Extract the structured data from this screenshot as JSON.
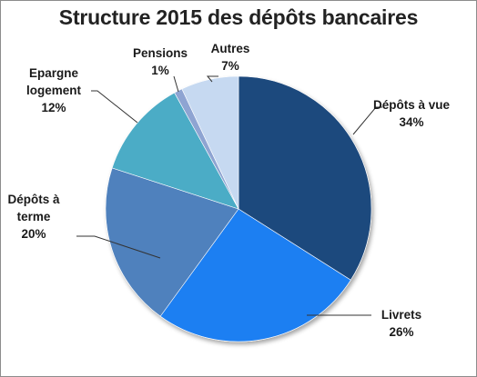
{
  "chart_data": {
    "type": "pie",
    "title": "Structure 2015 des dépôts bancaires",
    "slices": [
      {
        "label": [
          "Dépôts à vue"
        ],
        "value": 34,
        "value_label": "34%",
        "color": "#1f497d"
      },
      {
        "label": [
          "Livrets"
        ],
        "value": 26,
        "value_label": "26%",
        "color": "#1f7ff2"
      },
      {
        "label": [
          "Dépôts à",
          "terme"
        ],
        "value": 20,
        "value_label": "20%",
        "color": "#4f81bd"
      },
      {
        "label": [
          "Epargne",
          "logement"
        ],
        "value": 12,
        "value_label": "12%",
        "color": "#4bacc6"
      },
      {
        "label": [
          "Pensions"
        ],
        "value": 1,
        "value_label": "1%",
        "color": "#8ea4d2"
      },
      {
        "label": [
          "Autres"
        ],
        "value": 7,
        "value_label": "7%",
        "color": "#c6d9f1"
      }
    ],
    "start_angle": "12 o'clock",
    "direction": "clockwise",
    "legend": "none"
  }
}
